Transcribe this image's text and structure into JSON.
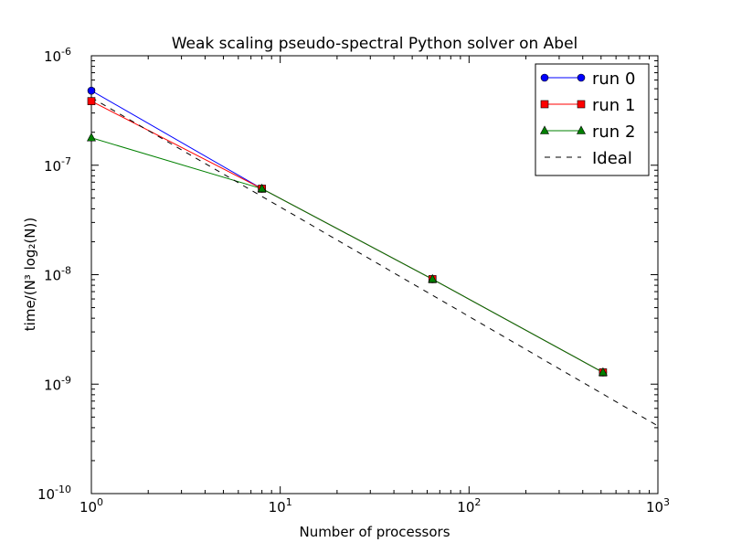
{
  "chart_data": {
    "type": "line",
    "title": "Weak scaling pseudo-spectral Python solver on Abel",
    "xlabel": "Number of processors",
    "ylabel": "time/(N³ log₂(N))",
    "xscale": "log",
    "yscale": "log",
    "xlim": [
      1,
      1000
    ],
    "ylim": [
      1e-10,
      1e-06
    ],
    "grid": false,
    "legend_position": "top-right",
    "x_ticks": [
      {
        "value": 1,
        "base": "10",
        "exp": "0"
      },
      {
        "value": 10,
        "base": "10",
        "exp": "1"
      },
      {
        "value": 100,
        "base": "10",
        "exp": "2"
      },
      {
        "value": 1000,
        "base": "10",
        "exp": "3"
      }
    ],
    "y_ticks": [
      {
        "value": 1e-10,
        "base": "10",
        "exp": "-10"
      },
      {
        "value": 1e-09,
        "base": "10",
        "exp": "-9"
      },
      {
        "value": 1e-08,
        "base": "10",
        "exp": "-8"
      },
      {
        "value": 1e-07,
        "base": "10",
        "exp": "-7"
      },
      {
        "value": 1e-06,
        "base": "10",
        "exp": "-6"
      }
    ],
    "series": [
      {
        "name": "run 0",
        "color": "#0000ff",
        "marker": "circle",
        "line": "solid",
        "x": [
          1,
          8,
          64,
          512
        ],
        "y": [
          4.8e-07,
          6.1e-08,
          9.1e-09,
          1.28e-09
        ]
      },
      {
        "name": "run 1",
        "color": "#ff0000",
        "marker": "square",
        "line": "solid",
        "x": [
          1,
          8,
          64,
          512
        ],
        "y": [
          3.85e-07,
          6.1e-08,
          9.1e-09,
          1.28e-09
        ]
      },
      {
        "name": "run 2",
        "color": "#008000",
        "marker": "triangle",
        "line": "solid",
        "x": [
          1,
          8,
          64,
          512
        ],
        "y": [
          1.78e-07,
          6.1e-08,
          9.1e-09,
          1.28e-09
        ]
      },
      {
        "name": "Ideal",
        "color": "#000000",
        "marker": "none",
        "line": "dashed",
        "x": [
          1,
          1000
        ],
        "y": [
          4.15e-07,
          4.15e-10
        ]
      }
    ]
  }
}
